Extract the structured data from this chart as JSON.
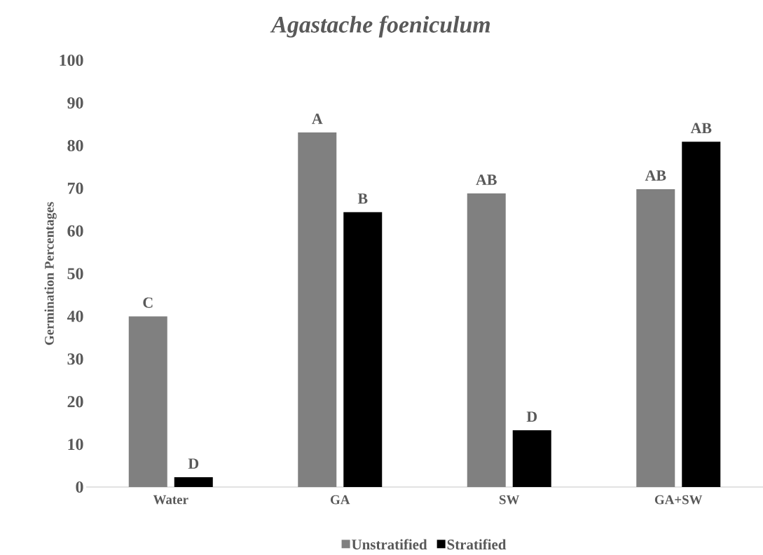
{
  "chart_data": {
    "type": "bar",
    "title": "*Agastache foeniculum*",
    "ylabel": "Germination Percentages",
    "categories": [
      "Water",
      "GA",
      "SW",
      "GA+SW"
    ],
    "series": [
      {
        "name": "Unstratified",
        "color": "#808080",
        "values": [
          40,
          83.1,
          68.8,
          69.8
        ]
      },
      {
        "name": "Stratified",
        "color": "#000000",
        "values": [
          2.3,
          64.4,
          13.3,
          80.9
        ]
      }
    ],
    "ylim": [
      0,
      100
    ],
    "yticks": [
      0,
      10,
      20,
      30,
      40,
      50,
      60,
      70,
      80,
      90,
      100
    ],
    "grid": false,
    "legend": "bottom",
    "annotations": [
      "C",
      "D",
      "A",
      "B",
      "AB",
      "D",
      "AB",
      "AB"
    ]
  }
}
